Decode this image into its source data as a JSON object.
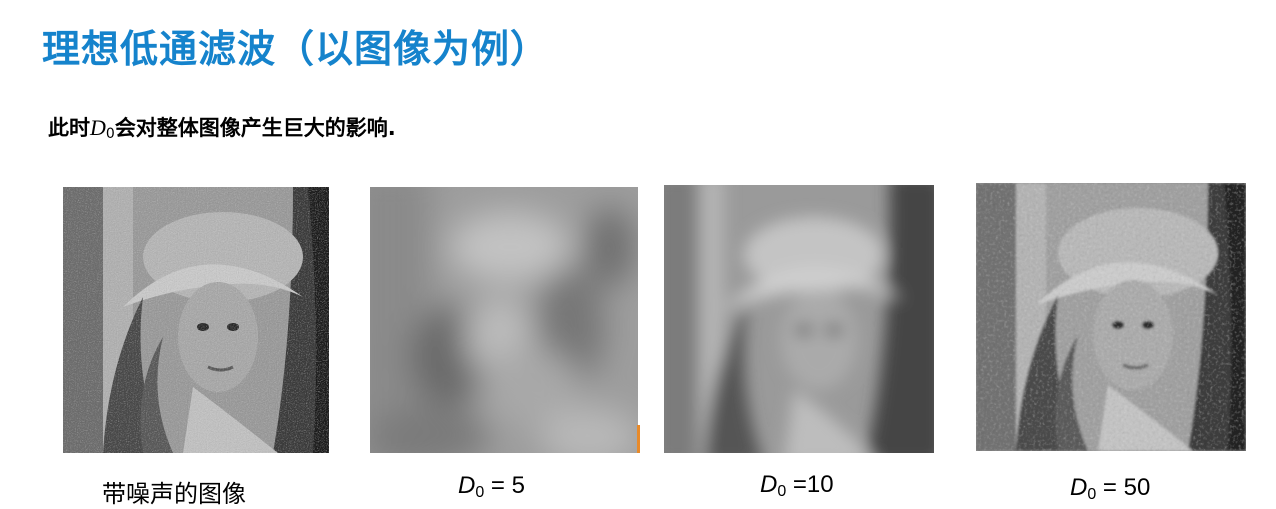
{
  "title": "理想低通滤波（以图像为例）",
  "subtitle": {
    "before": "此时",
    "symbol": "D",
    "subscript": "0",
    "after": "会对整体图像产生巨大的影响."
  },
  "figures": [
    {
      "caption_text": "带噪声的图像",
      "kind": "noisy"
    },
    {
      "symbol": "D",
      "subscript": "0",
      "eq": " = 5",
      "kind": "d5"
    },
    {
      "symbol": "D",
      "subscript": "0",
      "eq": " =10",
      "kind": "d10"
    },
    {
      "symbol": "D",
      "subscript": "0",
      "eq": " = 50",
      "kind": "d50"
    }
  ],
  "colors": {
    "title": "#1583cc",
    "accent_mark": "#e88a2a"
  }
}
